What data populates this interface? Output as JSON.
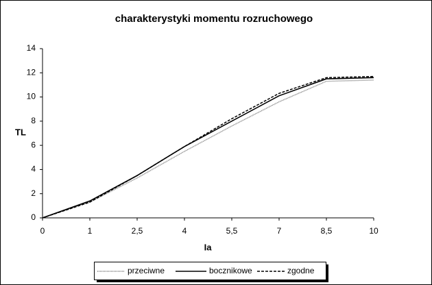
{
  "chart_data": {
    "type": "line",
    "title": "charakterystyki momentu rozruchowego",
    "x_label": "Ia",
    "y_label": "TL",
    "categories": [
      "0",
      "1",
      "2,5",
      "4",
      "5,5",
      "7",
      "8,5",
      "10"
    ],
    "series": [
      {
        "name": "przeciwne",
        "color": "#777777",
        "dash": "1,1",
        "values": [
          0,
          1.3,
          3.3,
          5.5,
          7.6,
          9.6,
          11.3,
          11.4
        ]
      },
      {
        "name": "bocznikowe",
        "color": "#000000",
        "dash": "none",
        "values": [
          0,
          1.4,
          3.5,
          5.9,
          8.0,
          10.1,
          11.5,
          11.6
        ]
      },
      {
        "name": "zgodne",
        "color": "#000000",
        "dash": "4,2",
        "values": [
          0,
          1.3,
          3.5,
          5.9,
          8.2,
          10.3,
          11.6,
          11.7
        ]
      }
    ],
    "ylim": [
      0,
      14
    ],
    "yticks": [
      0,
      2,
      4,
      6,
      8,
      10,
      12,
      14
    ],
    "legend": "bottom"
  }
}
